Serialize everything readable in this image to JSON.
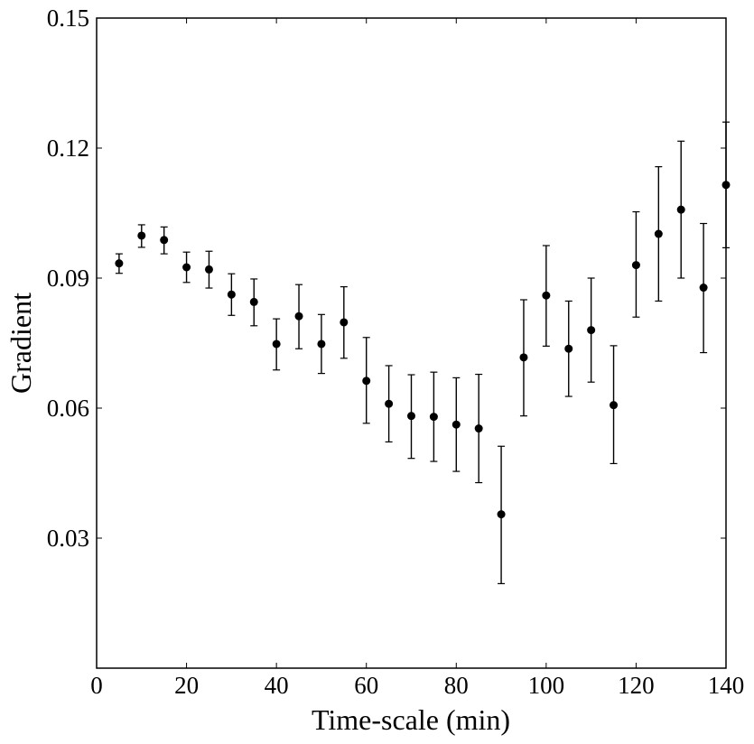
{
  "chart_data": {
    "type": "scatter",
    "title": "",
    "xlabel": "Time-scale (min)",
    "ylabel": "Gradient",
    "xlim": [
      0,
      140
    ],
    "ylim": [
      0.0,
      0.15
    ],
    "grid": false,
    "legend": "none",
    "marker_color": "#000000",
    "x_ticks": [
      0,
      20,
      40,
      60,
      80,
      100,
      120,
      140
    ],
    "x_tick_labels": [
      "0",
      "20",
      "40",
      "60",
      "80",
      "100",
      "120",
      "140"
    ],
    "y_ticks": [
      0.03,
      0.06,
      0.09,
      0.12,
      0.15
    ],
    "y_tick_labels": [
      "0.03",
      "0.06",
      "0.09",
      "0.12",
      "0.15"
    ],
    "series": [
      {
        "x": [
          5,
          10,
          15,
          20,
          25,
          30,
          35,
          40,
          45,
          50,
          55,
          60,
          65,
          70,
          75,
          80,
          85,
          90,
          95,
          100,
          105,
          110,
          115,
          120,
          125,
          130,
          135,
          140
        ],
        "y": [
          0.0934,
          0.0998,
          0.0988,
          0.0925,
          0.092,
          0.0862,
          0.0845,
          0.0748,
          0.0812,
          0.0748,
          0.0798,
          0.0663,
          0.061,
          0.0582,
          0.058,
          0.0562,
          0.0553,
          0.0355,
          0.0717,
          0.086,
          0.0737,
          0.078,
          0.0607,
          0.093,
          0.1002,
          0.1058,
          0.0878,
          0.1115
        ],
        "err_low": [
          0.0023,
          0.0027,
          0.0032,
          0.0035,
          0.0043,
          0.0048,
          0.0055,
          0.006,
          0.0075,
          0.0068,
          0.0083,
          0.0098,
          0.0088,
          0.0098,
          0.0103,
          0.0108,
          0.0125,
          0.016,
          0.0135,
          0.0117,
          0.011,
          0.012,
          0.0135,
          0.012,
          0.0155,
          0.0158,
          0.015,
          0.0145
        ],
        "err_high": [
          0.0022,
          0.0025,
          0.003,
          0.0035,
          0.0042,
          0.0048,
          0.0053,
          0.0058,
          0.0073,
          0.0068,
          0.0082,
          0.01,
          0.0088,
          0.0095,
          0.0103,
          0.0108,
          0.0125,
          0.0157,
          0.0133,
          0.0115,
          0.011,
          0.012,
          0.0137,
          0.0123,
          0.0155,
          0.0158,
          0.0148,
          0.0145
        ]
      }
    ]
  }
}
